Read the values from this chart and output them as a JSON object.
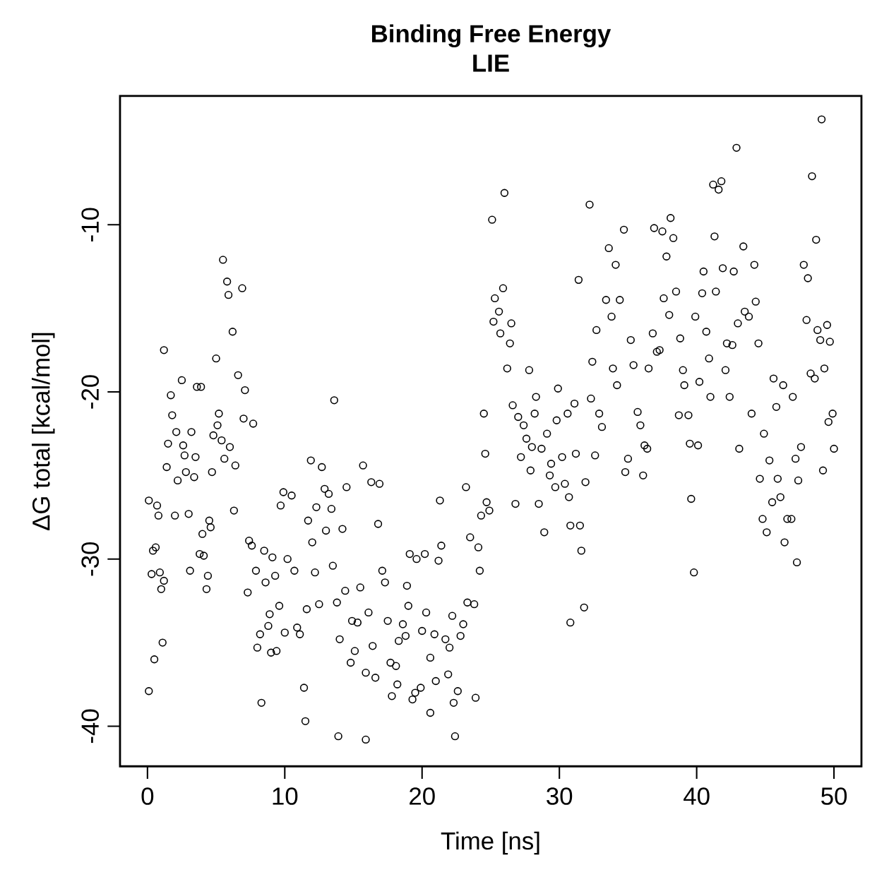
{
  "chart_data": {
    "type": "scatter",
    "title": "Binding Free Energy",
    "subtitle": "LIE",
    "xlabel": "Time [ns]",
    "ylabel": "ΔG total [kcal/mol]",
    "xlim": [
      -2,
      52
    ],
    "ylim": [
      -42.4,
      -2.3
    ],
    "xticks": [
      0,
      10,
      20,
      30,
      40,
      50
    ],
    "yticks": [
      -40,
      -30,
      -20,
      -10
    ],
    "marker": "circle",
    "color": "#000000",
    "x": [
      0.1,
      0.1,
      0.3,
      0.4,
      0.5,
      0.6,
      0.7,
      0.8,
      0.9,
      1.0,
      1.1,
      1.2,
      1.2,
      1.5,
      1.4,
      1.7,
      1.8,
      2.0,
      2.1,
      2.2,
      2.5,
      2.6,
      2.7,
      2.8,
      3.0,
      3.1,
      3.2,
      3.4,
      3.5,
      3.6,
      3.9,
      3.8,
      4.0,
      4.1,
      4.3,
      4.4,
      4.5,
      4.6,
      4.7,
      4.8,
      5.0,
      5.1,
      5.2,
      5.4,
      5.5,
      5.6,
      5.8,
      5.9,
      6.0,
      6.2,
      6.3,
      6.4,
      6.6,
      6.9,
      7.1,
      7.0,
      7.3,
      7.4,
      7.6,
      7.7,
      7.9,
      8.0,
      8.2,
      8.3,
      8.5,
      8.6,
      8.8,
      8.9,
      9.0,
      9.1,
      9.3,
      9.4,
      9.6,
      9.7,
      9.9,
      10.0,
      10.2,
      10.5,
      10.7,
      10.9,
      11.1,
      11.4,
      11.5,
      11.6,
      11.7,
      11.9,
      12.0,
      12.2,
      12.3,
      12.5,
      12.7,
      12.9,
      13.0,
      13.2,
      13.4,
      13.5,
      13.6,
      13.8,
      13.9,
      14.0,
      14.2,
      14.4,
      14.5,
      14.8,
      14.9,
      15.1,
      15.3,
      15.5,
      15.7,
      15.9,
      15.9,
      16.1,
      16.3,
      16.4,
      16.6,
      16.9,
      16.8,
      17.1,
      17.3,
      17.5,
      17.7,
      17.8,
      18.1,
      18.2,
      18.3,
      18.6,
      18.8,
      18.9,
      19.0,
      19.1,
      19.3,
      19.5,
      19.6,
      19.9,
      20.0,
      20.2,
      20.3,
      20.6,
      20.6,
      20.9,
      21.0,
      21.2,
      21.3,
      21.4,
      21.7,
      21.9,
      22.0,
      22.2,
      22.3,
      22.4,
      22.6,
      22.8,
      23.0,
      23.2,
      23.3,
      23.5,
      23.8,
      23.9,
      24.1,
      24.2,
      24.3,
      24.5,
      24.6,
      24.7,
      24.9,
      25.1,
      25.2,
      25.3,
      25.6,
      25.7,
      25.9,
      26.0,
      26.2,
      26.4,
      26.5,
      26.6,
      26.8,
      27.0,
      27.2,
      27.4,
      27.6,
      27.8,
      27.9,
      28.0,
      28.2,
      28.3,
      28.5,
      28.7,
      28.9,
      29.1,
      29.3,
      29.4,
      29.7,
      29.8,
      29.9,
      30.2,
      30.4,
      30.6,
      30.7,
      30.8,
      30.8,
      31.1,
      31.2,
      31.4,
      31.5,
      31.6,
      31.8,
      31.9,
      32.2,
      32.3,
      32.4,
      32.6,
      32.7,
      32.9,
      33.1,
      33.4,
      33.6,
      33.8,
      33.9,
      34.1,
      34.2,
      34.4,
      34.7,
      34.8,
      35.0,
      35.2,
      35.4,
      35.7,
      35.9,
      36.1,
      36.2,
      36.4,
      36.5,
      36.8,
      36.9,
      37.1,
      37.3,
      37.5,
      37.6,
      37.8,
      38.0,
      38.1,
      38.3,
      38.5,
      38.7,
      38.8,
      39.0,
      39.1,
      39.4,
      39.5,
      39.6,
      39.8,
      39.9,
      40.1,
      40.2,
      40.4,
      40.5,
      40.7,
      40.9,
      41.0,
      41.2,
      41.3,
      41.4,
      41.6,
      41.8,
      41.9,
      42.1,
      42.2,
      42.4,
      42.6,
      42.7,
      42.9,
      43.0,
      43.1,
      43.4,
      43.5,
      43.8,
      44.0,
      44.2,
      44.3,
      44.5,
      44.6,
      44.8,
      44.9,
      45.1,
      45.3,
      45.5,
      45.6,
      45.8,
      45.9,
      46.1,
      46.3,
      46.4,
      46.6,
      46.9,
      47.0,
      47.2,
      47.3,
      47.4,
      47.6,
      47.8,
      48.0,
      48.1,
      48.3,
      48.4,
      48.6,
      48.7,
      48.8,
      49.0,
      49.1,
      49.2,
      49.3,
      49.5,
      49.6,
      49.7,
      49.9,
      50.0
    ],
    "values": [
      -26.5,
      -37.9,
      -30.9,
      -29.5,
      -36.0,
      -29.3,
      -26.8,
      -27.4,
      -30.8,
      -31.8,
      -35.0,
      -31.3,
      -17.5,
      -23.1,
      -24.5,
      -20.2,
      -21.4,
      -27.4,
      -22.4,
      -25.3,
      -19.3,
      -23.2,
      -23.8,
      -24.8,
      -27.3,
      -30.7,
      -22.4,
      -25.1,
      -23.9,
      -19.7,
      -19.7,
      -29.7,
      -28.5,
      -29.8,
      -31.8,
      -31.0,
      -27.7,
      -28.1,
      -24.8,
      -22.6,
      -18.0,
      -22.0,
      -21.3,
      -22.9,
      -12.1,
      -24.0,
      -13.4,
      -14.2,
      -23.3,
      -16.4,
      -27.1,
      -24.4,
      -19.0,
      -13.8,
      -19.9,
      -21.6,
      -32.0,
      -28.9,
      -29.2,
      -21.9,
      -30.7,
      -35.3,
      -34.5,
      -38.6,
      -29.5,
      -31.4,
      -34.0,
      -33.3,
      -35.6,
      -29.9,
      -31.0,
      -35.5,
      -32.8,
      -26.8,
      -26.0,
      -34.4,
      -30.0,
      -26.2,
      -30.7,
      -34.1,
      -34.5,
      -37.7,
      -39.7,
      -33.0,
      -27.7,
      -24.1,
      -29.0,
      -30.8,
      -26.9,
      -32.7,
      -24.5,
      -25.8,
      -28.3,
      -26.1,
      -27.0,
      -30.4,
      -20.5,
      -32.6,
      -40.6,
      -34.8,
      -28.2,
      -31.9,
      -25.7,
      -36.2,
      -33.7,
      -35.5,
      -33.8,
      -31.7,
      -24.4,
      -36.8,
      -40.8,
      -33.2,
      -25.4,
      -35.2,
      -37.1,
      -25.5,
      -27.9,
      -30.7,
      -31.4,
      -33.7,
      -36.2,
      -38.2,
      -36.4,
      -37.5,
      -34.9,
      -33.9,
      -34.6,
      -31.6,
      -32.8,
      -29.7,
      -38.4,
      -38.0,
      -30.0,
      -37.7,
      -34.3,
      -29.7,
      -33.2,
      -39.2,
      -35.9,
      -34.5,
      -37.3,
      -30.1,
      -26.5,
      -29.2,
      -34.8,
      -36.9,
      -35.3,
      -33.4,
      -38.6,
      -40.6,
      -37.9,
      -34.6,
      -33.9,
      -25.7,
      -32.6,
      -28.7,
      -32.7,
      -38.3,
      -29.3,
      -30.7,
      -27.4,
      -21.3,
      -23.7,
      -26.6,
      -27.1,
      -9.7,
      -15.8,
      -14.4,
      -15.2,
      -16.5,
      -13.8,
      -8.1,
      -18.6,
      -17.1,
      -15.9,
      -20.8,
      -26.7,
      -21.5,
      -23.9,
      -22.0,
      -22.8,
      -18.7,
      -24.7,
      -23.3,
      -21.3,
      -20.3,
      -26.7,
      -23.4,
      -28.4,
      -22.5,
      -25.0,
      -24.3,
      -25.7,
      -21.7,
      -19.8,
      -23.9,
      -25.5,
      -21.3,
      -26.3,
      -33.8,
      -28.0,
      -20.7,
      -23.7,
      -13.3,
      -28.0,
      -29.5,
      -32.9,
      -25.4,
      -8.8,
      -20.4,
      -18.2,
      -23.8,
      -16.3,
      -21.3,
      -22.1,
      -14.5,
      -11.4,
      -15.5,
      -18.6,
      -12.4,
      -19.6,
      -14.5,
      -10.3,
      -24.8,
      -24.0,
      -16.9,
      -18.4,
      -21.2,
      -22.0,
      -25.0,
      -23.2,
      -23.4,
      -18.6,
      -16.5,
      -10.2,
      -17.6,
      -17.5,
      -10.4,
      -14.4,
      -11.9,
      -15.4,
      -9.6,
      -10.8,
      -14.0,
      -21.4,
      -16.8,
      -18.7,
      -19.6,
      -21.4,
      -23.1,
      -26.4,
      -30.8,
      -15.5,
      -23.2,
      -19.4,
      -14.1,
      -12.8,
      -16.4,
      -18.0,
      -20.3,
      -7.6,
      -10.7,
      -14.0,
      -7.9,
      -7.4,
      -12.6,
      -18.7,
      -17.1,
      -20.3,
      -17.2,
      -12.8,
      -5.4,
      -15.9,
      -23.4,
      -11.3,
      -15.2,
      -15.5,
      -21.3,
      -12.4,
      -14.6,
      -17.1,
      -25.2,
      -27.6,
      -22.5,
      -28.4,
      -24.1,
      -26.6,
      -19.2,
      -20.9,
      -25.2,
      -26.3,
      -19.6,
      -29.0,
      -27.6,
      -27.6,
      -20.3,
      -24.0,
      -30.2,
      -25.3,
      -23.3,
      -12.4,
      -15.7,
      -13.2,
      -18.9,
      -7.1,
      -19.2,
      -10.9,
      -16.3,
      -16.9,
      -3.7,
      -24.7,
      -18.6,
      -16.0,
      -21.8,
      -17.0,
      -21.3,
      -23.4
    ]
  }
}
